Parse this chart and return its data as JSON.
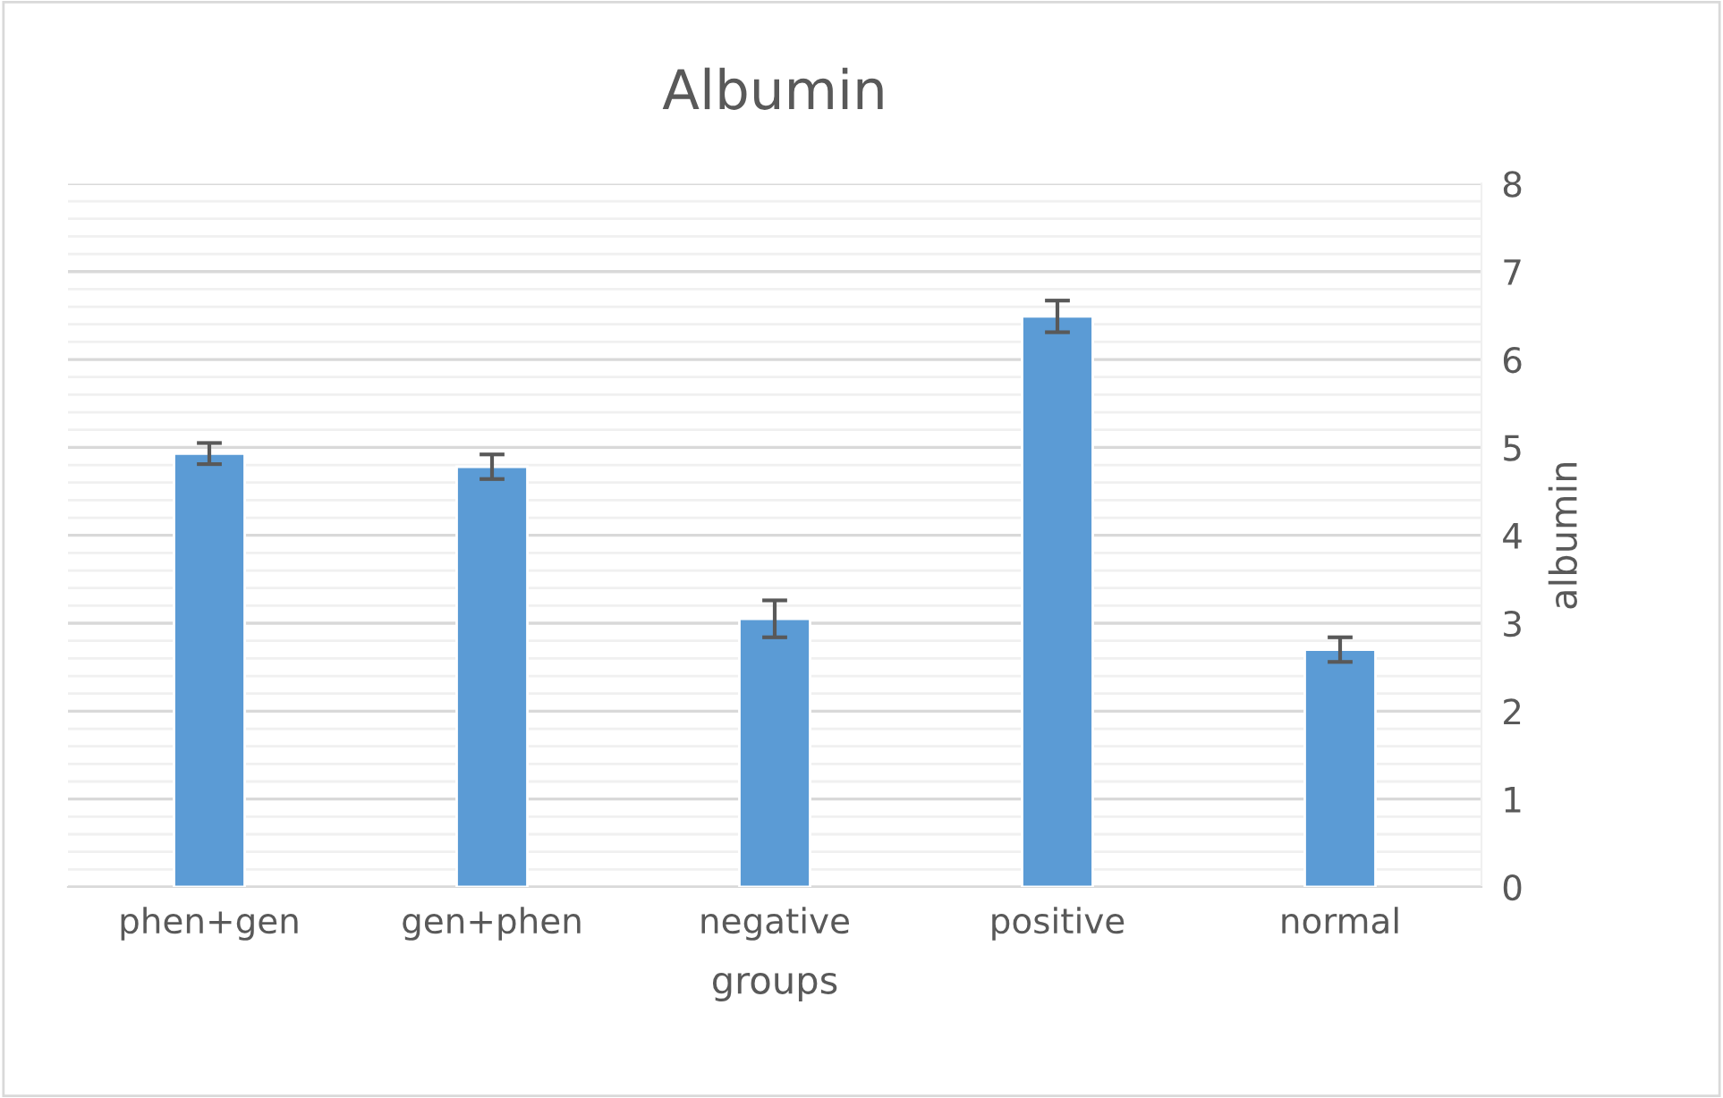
{
  "chart_data": {
    "type": "bar",
    "title": "Albumin",
    "xlabel": "groups",
    "ylabel": "albumin",
    "categories": [
      "phen+gen",
      "gen+phen",
      "negative",
      "positive",
      "normal"
    ],
    "values": [
      4.93,
      4.78,
      3.05,
      6.49,
      2.7
    ],
    "errors": [
      0.12,
      0.14,
      0.21,
      0.18,
      0.14
    ],
    "color": "#5b9bd5",
    "ylim": [
      0,
      8
    ],
    "yticks": [
      0,
      1,
      2,
      3,
      4,
      5,
      6,
      7,
      8
    ],
    "grid": "y"
  }
}
